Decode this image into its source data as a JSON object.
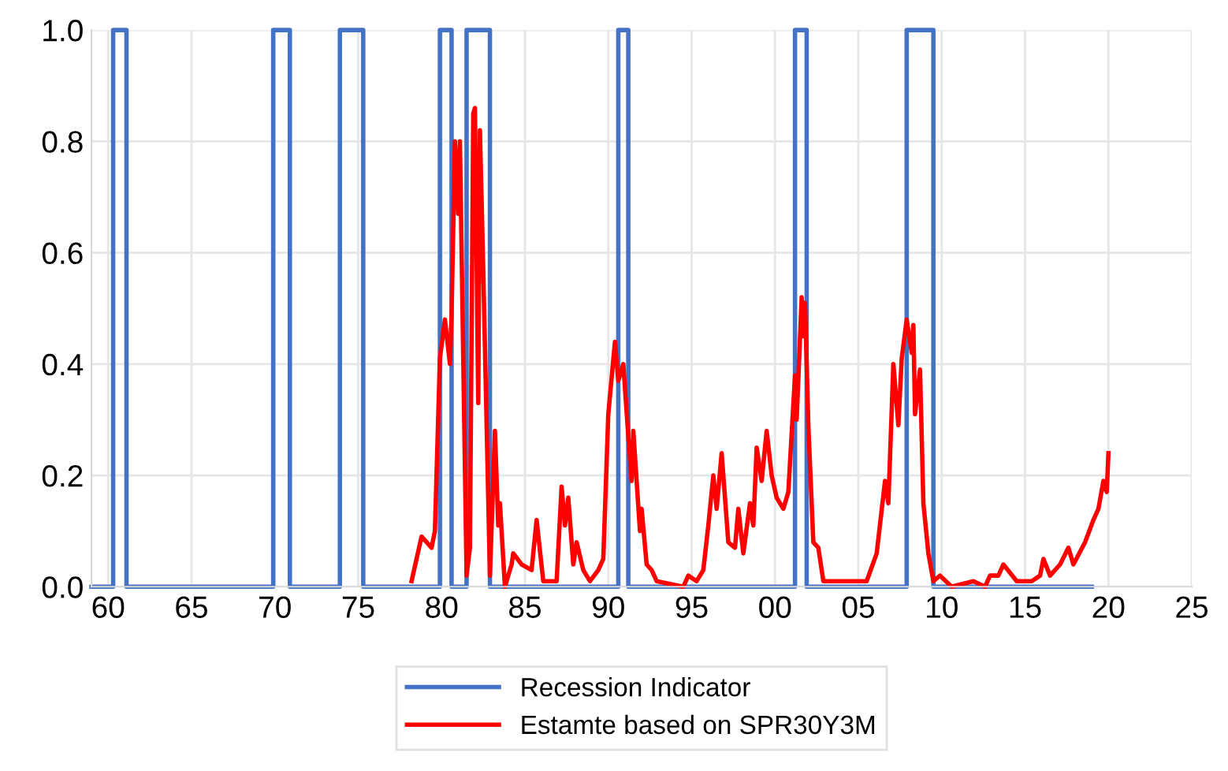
{
  "chart_data": {
    "type": "line",
    "xlim": [
      1959,
      2025
    ],
    "ylim": [
      0,
      1.0
    ],
    "xticks": [
      {
        "value": 1960,
        "label": "60"
      },
      {
        "value": 1965,
        "label": "65"
      },
      {
        "value": 1970,
        "label": "70"
      },
      {
        "value": 1975,
        "label": "75"
      },
      {
        "value": 1980,
        "label": "80"
      },
      {
        "value": 1985,
        "label": "85"
      },
      {
        "value": 1990,
        "label": "90"
      },
      {
        "value": 1995,
        "label": "95"
      },
      {
        "value": 2000,
        "label": "00"
      },
      {
        "value": 2005,
        "label": "05"
      },
      {
        "value": 2010,
        "label": "10"
      },
      {
        "value": 2015,
        "label": "15"
      },
      {
        "value": 2020,
        "label": "20"
      },
      {
        "value": 2025,
        "label": "25"
      }
    ],
    "yticks": [
      {
        "value": 0,
        "label": "0.0"
      },
      {
        "value": 0.2,
        "label": "0.2"
      },
      {
        "value": 0.4,
        "label": "0.4"
      },
      {
        "value": 0.6,
        "label": "0.6"
      },
      {
        "value": 0.8,
        "label": "0.8"
      },
      {
        "value": 1.0,
        "label": "1.0"
      }
    ],
    "grid": true,
    "legend": "bottom",
    "marker": "none",
    "line_style": "solid",
    "series": [
      {
        "name": "Recession Indicator",
        "color": "#4472c4",
        "x": [
          1959,
          1960.3,
          1960.3,
          1961.1,
          1961.1,
          1969.9,
          1969.9,
          1970.9,
          1970.9,
          1973.9,
          1973.9,
          1975.3,
          1975.3,
          1979.9,
          1979.9,
          1980.6,
          1980.6,
          1981.5,
          1981.5,
          1982.9,
          1982.9,
          1990.6,
          1990.6,
          1991.2,
          1991.2,
          2001.2,
          2001.2,
          2001.9,
          2001.9,
          2007.9,
          2007.9,
          2009.5,
          2009.5,
          2019
        ],
        "values": [
          0,
          0,
          1,
          1,
          0,
          0,
          1,
          1,
          0,
          0,
          1,
          1,
          0,
          0,
          1,
          1,
          0,
          0,
          1,
          1,
          0,
          0,
          1,
          1,
          0,
          0,
          1,
          1,
          0,
          0,
          1,
          1,
          0,
          0
        ]
      },
      {
        "name": "Estamte based on SPR30Y3M",
        "color": "#ff0000",
        "x": [
          1978.2,
          1978.8,
          1979.4,
          1979.6,
          1979.9,
          1980.2,
          1980.5,
          1980.6,
          1980.8,
          1981.0,
          1981.1,
          1981.5,
          1981.7,
          1981.9,
          1982.0,
          1982.2,
          1982.3,
          1982.5,
          1982.9,
          1983.2,
          1983.4,
          1983.5,
          1983.8,
          1984.2,
          1984.3,
          1984.8,
          1985.4,
          1985.7,
          1986.1,
          1986.9,
          1987.2,
          1987.4,
          1987.6,
          1987.9,
          1988.1,
          1988.5,
          1988.9,
          1989.4,
          1989.7,
          1990.0,
          1990.4,
          1990.6,
          1990.9,
          1991.2,
          1991.4,
          1991.5,
          1991.9,
          1992.0,
          1992.3,
          1992.6,
          1992.9,
          1994.5,
          1994.8,
          1995.3,
          1995.7,
          1996.0,
          1996.3,
          1996.5,
          1996.8,
          1997.2,
          1997.6,
          1997.8,
          1998.1,
          1998.5,
          1998.7,
          1998.9,
          1999.2,
          1999.5,
          1999.8,
          2000.1,
          2000.5,
          2000.8,
          2001.2,
          2001.3,
          2001.6,
          2001.7,
          2001.8,
          2002.0,
          2002.3,
          2002.6,
          2002.9,
          2004.2,
          2005.5,
          2006.1,
          2006.6,
          2006.8,
          2007.1,
          2007.4,
          2007.6,
          2007.9,
          2008.2,
          2008.3,
          2008.4,
          2008.7,
          2008.9,
          2009.2,
          2009.5,
          2009.9,
          2010.6,
          2011.9,
          2012.6,
          2012.9,
          2013.4,
          2013.7,
          2014.5,
          2015.4,
          2015.9,
          2016.1,
          2016.5,
          2017.1,
          2017.6,
          2017.9,
          2018.6,
          2019.1,
          2019.4,
          2019.7,
          2019.9,
          2020.0
        ],
        "values": [
          0.01,
          0.09,
          0.07,
          0.1,
          0.41,
          0.48,
          0.4,
          0.49,
          0.8,
          0.67,
          0.8,
          0.02,
          0.07,
          0.85,
          0.86,
          0.33,
          0.82,
          0.57,
          0.02,
          0.28,
          0.11,
          0.15,
          0.0,
          0.04,
          0.06,
          0.04,
          0.03,
          0.12,
          0.01,
          0.01,
          0.18,
          0.11,
          0.16,
          0.04,
          0.08,
          0.03,
          0.01,
          0.03,
          0.05,
          0.31,
          0.44,
          0.37,
          0.4,
          0.27,
          0.19,
          0.28,
          0.1,
          0.14,
          0.04,
          0.03,
          0.01,
          0.0,
          0.02,
          0.01,
          0.03,
          0.11,
          0.2,
          0.14,
          0.24,
          0.08,
          0.07,
          0.14,
          0.06,
          0.15,
          0.11,
          0.25,
          0.19,
          0.28,
          0.2,
          0.16,
          0.14,
          0.17,
          0.38,
          0.3,
          0.52,
          0.45,
          0.51,
          0.29,
          0.08,
          0.07,
          0.01,
          0.01,
          0.01,
          0.06,
          0.19,
          0.15,
          0.4,
          0.29,
          0.41,
          0.48,
          0.42,
          0.47,
          0.31,
          0.39,
          0.15,
          0.06,
          0.01,
          0.02,
          0.0,
          0.01,
          0.0,
          0.02,
          0.02,
          0.04,
          0.01,
          0.01,
          0.02,
          0.05,
          0.02,
          0.04,
          0.07,
          0.04,
          0.08,
          0.12,
          0.14,
          0.19,
          0.17,
          0.24
        ]
      }
    ]
  }
}
